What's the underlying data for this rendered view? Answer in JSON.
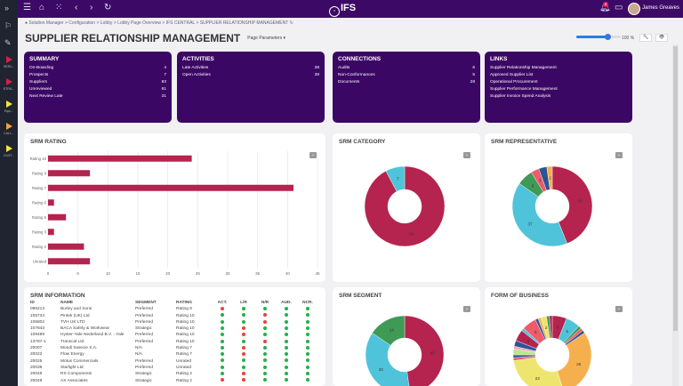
{
  "topbar": {
    "brand": "IFS",
    "user": "James Greaves",
    "notifications": "8"
  },
  "sidebar": {
    "items": [
      {
        "label": "SERV...",
        "color": "#d2204a"
      },
      {
        "label": "STRU...",
        "color": "#d2204a"
      },
      {
        "label": "Equi...",
        "color": "#f2e33b"
      },
      {
        "label": "CALL...",
        "color": "#f0a33a"
      },
      {
        "label": "CUST...",
        "color": "#f2e33b"
      }
    ]
  },
  "breadcrumb": "Solution Manager > Configuration > Lobby > Lobby Page Overview > IFS CENTRAL > SUPPLIER RELATIONSHIP MANAGEMENT",
  "page": {
    "title": "SUPPLIER RELATIONSHIP MANAGEMENT",
    "params": "Page Parameters ▾",
    "zoom": "100 %",
    "zoom_value": 70
  },
  "cards": [
    {
      "title": "SUMMARY",
      "rows": [
        [
          "On-Boarding",
          "4"
        ],
        [
          "Prospects",
          "7"
        ],
        [
          "Suppliers",
          "83"
        ],
        [
          "Unreviewed",
          "61"
        ],
        [
          "Next Review Late",
          "31"
        ]
      ]
    },
    {
      "title": "ACTIVITIES",
      "rows": [
        [
          "Late Activities",
          "38"
        ],
        [
          "Open Activities",
          "38"
        ]
      ]
    },
    {
      "title": "CONNECTIONS",
      "rows": [
        [
          "Audits",
          "6"
        ],
        [
          "Non-Conformances",
          "5"
        ],
        [
          "Documents",
          "28"
        ]
      ]
    },
    {
      "title": "LINKS",
      "links": [
        "Supplier Relationship Management",
        "Approved Supplier List",
        "Operational Procurement",
        "Supplier Performance Management",
        "Supplier Invoice Spend Analysis"
      ]
    }
  ],
  "chart_data": [
    {
      "type": "bar",
      "orientation": "horizontal",
      "title": "SRM RATING",
      "categories": [
        "Rating 10",
        "Rating 9",
        "Rating 7",
        "Rating 6",
        "Rating 5",
        "Rating 3",
        "Rating 2",
        "Unrated"
      ],
      "values": [
        24,
        7,
        41,
        1,
        3,
        1,
        6,
        7
      ],
      "xlim": [
        0,
        45
      ],
      "ticks": [
        "0",
        "5",
        "10",
        "15",
        "20",
        "25",
        "30",
        "35",
        "40",
        "45"
      ],
      "color": "#b5234f",
      "grid": true
    },
    {
      "type": "pie",
      "donut": true,
      "title": "SRM CATEGORY",
      "values": [
        83,
        7
      ],
      "labels": [
        "83",
        "7"
      ],
      "colors": [
        "#b5234f",
        "#4fc3d9"
      ]
    },
    {
      "type": "pie",
      "donut": true,
      "title": "SRM REPRESENTATIVE",
      "values": [
        40,
        37,
        6,
        3,
        3,
        2
      ],
      "labels": [
        "40",
        "37",
        "6",
        "3",
        "3",
        "2"
      ],
      "colors": [
        "#b5234f",
        "#4fc3d9",
        "#3f9a56",
        "#ef5b6b",
        "#2c5597",
        "#f5b04d"
      ]
    },
    {
      "type": "pie",
      "donut": true,
      "title": "SRM SEGMENT",
      "values": [
        43,
        33,
        14
      ],
      "labels": [
        "43",
        "33",
        "14"
      ],
      "colors": [
        "#b5234f",
        "#4fc3d9",
        "#3f9a56"
      ]
    },
    {
      "type": "pie",
      "donut": true,
      "title": "FORM OF BUSINESS",
      "values": [
        5,
        5,
        1,
        1,
        1,
        25,
        23,
        1,
        1,
        2,
        1,
        2,
        4,
        1,
        5,
        1,
        1,
        2,
        1,
        1
      ],
      "labels": [
        "5",
        "5",
        "",
        "",
        "",
        "25",
        "23",
        "",
        "",
        "",
        "",
        "",
        "4",
        "",
        "5",
        "",
        "",
        "2",
        "",
        ""
      ],
      "colors": [
        "#b5234f",
        "#4fc3d9",
        "#3f9a56",
        "#ef5b6b",
        "#2c5597",
        "#f5b04d",
        "#ede56e",
        "#ef5b6b",
        "#2c5597",
        "#b8e986",
        "#f4a6c0",
        "#2c5597",
        "#b5234f",
        "#4fc3d9",
        "#ef5b6b",
        "#2c5597",
        "#f5b04d",
        "#ede56e",
        "#3f9a56",
        "#b5234f"
      ]
    }
  ],
  "info": {
    "title": "SRM INFORMATION",
    "columns": [
      "ID",
      "NAME",
      "SEGMENT",
      "RATING",
      "ACT.",
      "L/R",
      "N/R",
      "AUD.",
      "NCR."
    ],
    "rows": [
      [
        "095213",
        "Burley and Sons",
        "Preferred",
        "Rating 9",
        "R",
        "G",
        "G",
        "G",
        "G"
      ],
      [
        "105734",
        "Pintek (UK) Ltd",
        "Preferred",
        "Rating 10",
        "G",
        "G",
        "R",
        "G",
        "G"
      ],
      [
        "105802",
        "TVH UK LTD",
        "Preferred",
        "Rating 10",
        "G",
        "G",
        "R",
        "G",
        "G"
      ],
      [
        "107843",
        "BACA Safety & Workwear",
        "Strategic",
        "Rating 10",
        "G",
        "R",
        "G",
        "G",
        "G"
      ],
      [
        "109489",
        "Hyster-Yale Nederland B.V. - Yale",
        "Preferred",
        "Rating 10",
        "G",
        "R",
        "G",
        "G",
        "G"
      ],
      [
        "13787-1",
        "Transcal Ltd",
        "Preferred",
        "Rating 10",
        "G",
        "G",
        "R",
        "G",
        "G"
      ],
      [
        "20007",
        "Mondi Swiecie S.A.",
        "N/A",
        "Rating 7",
        "G",
        "R",
        "G",
        "G",
        "G"
      ],
      [
        "20022",
        "Flow Energy",
        "N/A",
        "Rating 7",
        "G",
        "R",
        "G",
        "G",
        "G"
      ],
      [
        "20025",
        "Motus Commercials",
        "Preferred",
        "Unrated",
        "G",
        "G",
        "G",
        "G",
        "G"
      ],
      [
        "20039",
        "Starlight Ltd",
        "Preferred",
        "Unrated",
        "G",
        "G",
        "G",
        "G",
        "G"
      ],
      [
        "20048",
        "RS Components",
        "Strategic",
        "Rating 2",
        "G",
        "R",
        "G",
        "G",
        "G"
      ],
      [
        "20049",
        "AX Associates",
        "Strategic",
        "Rating 2",
        "R",
        "R",
        "G",
        "G",
        "G"
      ]
    ],
    "status_colors": {
      "R": "#e8413c",
      "G": "#22b14c"
    }
  }
}
